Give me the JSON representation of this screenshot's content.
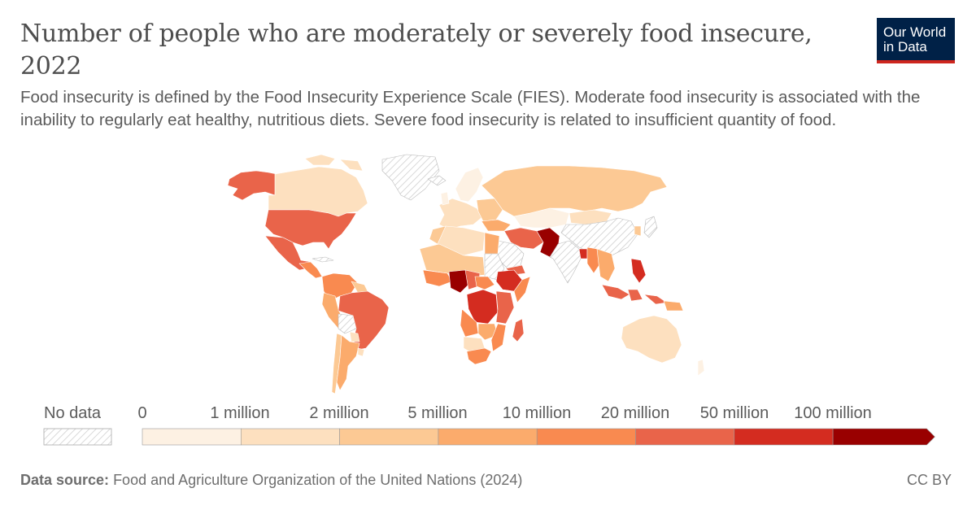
{
  "header": {
    "title_line1": "Number of people who are moderately or severely food insecure,",
    "title_line2": "2022",
    "subtitle": "Food insecurity is defined by the Food Insecurity Experience Scale (FIES). Moderate food insecurity is associated with the inability to regularly eat healthy, nutritious diets. Severe food insecurity is related to insufficient quantity of food."
  },
  "logo": {
    "line1": "Our World",
    "line2": "in Data"
  },
  "legend": {
    "no_data_label": "No data",
    "bins": [
      {
        "label": "0",
        "color": "#fdf1e3"
      },
      {
        "label": "1 million",
        "color": "#fde0bf"
      },
      {
        "label": "2 million",
        "color": "#fcc994"
      },
      {
        "label": "5 million",
        "color": "#fbab6c"
      },
      {
        "label": "10 million",
        "color": "#f98a50"
      },
      {
        "label": "20 million",
        "color": "#e9644a"
      },
      {
        "label": "50 million",
        "color": "#d42c20"
      },
      {
        "label": "100 million",
        "color": "#990000"
      }
    ]
  },
  "footer": {
    "source_label": "Data source:",
    "source_text": "Food and Agriculture Organization of the United Nations (2024)",
    "license": "CC BY"
  },
  "map_regions": [
    {
      "name": "Canada",
      "bin": 1
    },
    {
      "name": "Alaska",
      "bin": 5
    },
    {
      "name": "United States",
      "bin": 5
    },
    {
      "name": "Mexico",
      "bin": 5
    },
    {
      "name": "Greenland",
      "bin": "no-data"
    },
    {
      "name": "Brazil",
      "bin": 5
    },
    {
      "name": "Argentina",
      "bin": 3
    },
    {
      "name": "Russia",
      "bin": 2
    },
    {
      "name": "China",
      "bin": "no-data"
    },
    {
      "name": "India",
      "bin": "no-data"
    },
    {
      "name": "Pakistan",
      "bin": 7
    },
    {
      "name": "Nigeria",
      "bin": 7
    },
    {
      "name": "DR Congo",
      "bin": 5
    },
    {
      "name": "Ethiopia",
      "bin": 5
    },
    {
      "name": "Bangladesh",
      "bin": 6
    },
    {
      "name": "Philippines",
      "bin": 6
    },
    {
      "name": "Australia",
      "bin": 1
    },
    {
      "name": "Iran",
      "bin": 5
    },
    {
      "name": "Egypt",
      "bin": 3
    }
  ]
}
